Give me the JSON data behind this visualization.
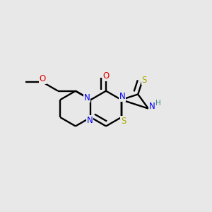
{
  "bg_color": "#e8e8e8",
  "bond_lw": 1.7,
  "dbo": 0.022,
  "atom_colors": {
    "C": "#000000",
    "N": "#0000ee",
    "O": "#dd0000",
    "S": "#aaaa00",
    "H": "#448888"
  },
  "label_fs": 8.5
}
